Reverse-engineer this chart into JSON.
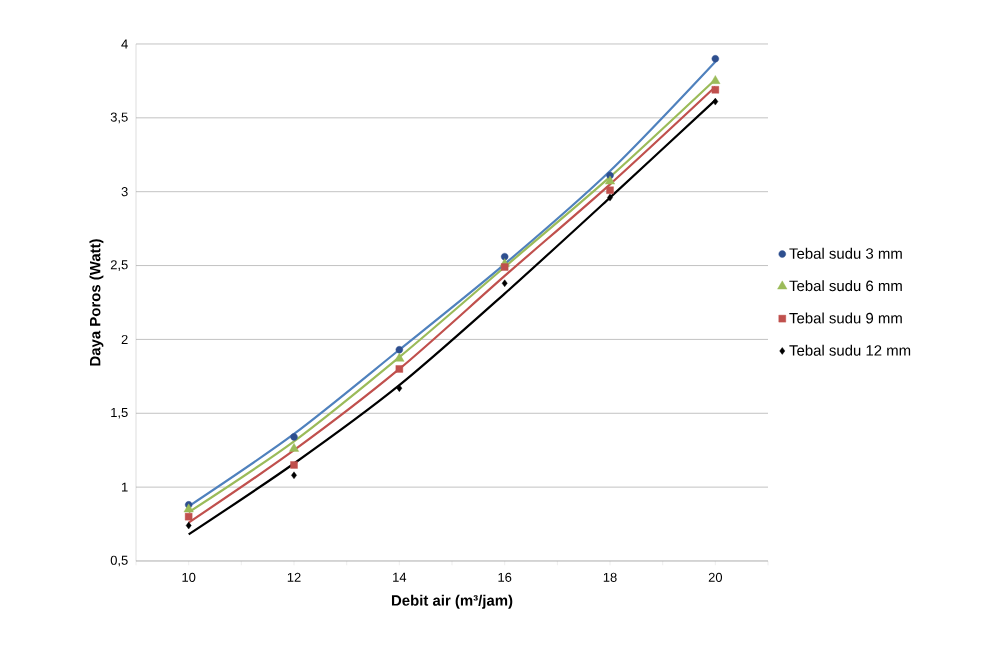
{
  "chart_data": {
    "type": "scatter",
    "xlabel": "Debit air (m³/jam)",
    "ylabel": "Daya Poros (Watt)",
    "xlim": [
      9,
      21
    ],
    "xticks": [
      {
        "value": 9,
        "label": null
      },
      {
        "value": 10,
        "label": "10"
      },
      {
        "value": 11,
        "label": null
      },
      {
        "value": 12,
        "label": "12"
      },
      {
        "value": 13,
        "label": null
      },
      {
        "value": 14,
        "label": "14"
      },
      {
        "value": 15,
        "label": null
      },
      {
        "value": 16,
        "label": "16"
      },
      {
        "value": 17,
        "label": null
      },
      {
        "value": 18,
        "label": "18"
      },
      {
        "value": 19,
        "label": null
      },
      {
        "value": 20,
        "label": "20"
      },
      {
        "value": 21,
        "label": null
      }
    ],
    "ylim": [
      0.5,
      4
    ],
    "yticks": [
      {
        "value": 0.5,
        "label": "0,5"
      },
      1,
      {
        "value": 1.5,
        "label": "1,5"
      },
      2,
      {
        "value": 2.5,
        "label": "2,5"
      },
      3,
      {
        "value": 3.5,
        "label": "3,5"
      },
      4
    ],
    "grid": "y",
    "legend": "right",
    "x": [
      10,
      12,
      14,
      16,
      18,
      20
    ],
    "series": [
      {
        "name": "Tebal sudu 3 mm",
        "color": "#2e4f8f",
        "marker": "circle",
        "values": [
          0.88,
          1.34,
          1.93,
          2.56,
          3.11,
          3.9
        ]
      },
      {
        "name": "Tebal sudu 6 mm",
        "color": "#9bbb59",
        "marker": "triangle",
        "values": [
          0.85,
          1.26,
          1.87,
          2.51,
          3.07,
          3.75
        ]
      },
      {
        "name": "Tebal sudu 9 mm",
        "color": "#c0504d",
        "marker": "square",
        "values": [
          0.8,
          1.15,
          1.8,
          2.49,
          3.01,
          3.69
        ]
      },
      {
        "name": "Tebal sudu 12 mm",
        "color": "#000000",
        "marker": "diamond",
        "values": [
          0.74,
          1.08,
          1.67,
          2.38,
          2.96,
          3.61
        ]
      },
      {
        "type": "line",
        "color": "#4f81bd",
        "marker": "none",
        "values": [
          0.87,
          1.36,
          1.93,
          2.51,
          3.14,
          3.88
        ]
      },
      {
        "type": "line",
        "color": "#9bbb59",
        "marker": "none",
        "values": [
          0.83,
          1.31,
          1.88,
          2.49,
          3.1,
          3.76
        ]
      },
      {
        "type": "line",
        "color": "#c0504d",
        "marker": "none",
        "values": [
          0.76,
          1.25,
          1.8,
          2.43,
          3.05,
          3.71
        ]
      },
      {
        "type": "line",
        "color": "#000000",
        "marker": "none",
        "values": [
          0.68,
          1.16,
          1.69,
          2.31,
          2.96,
          3.62
        ]
      }
    ]
  }
}
